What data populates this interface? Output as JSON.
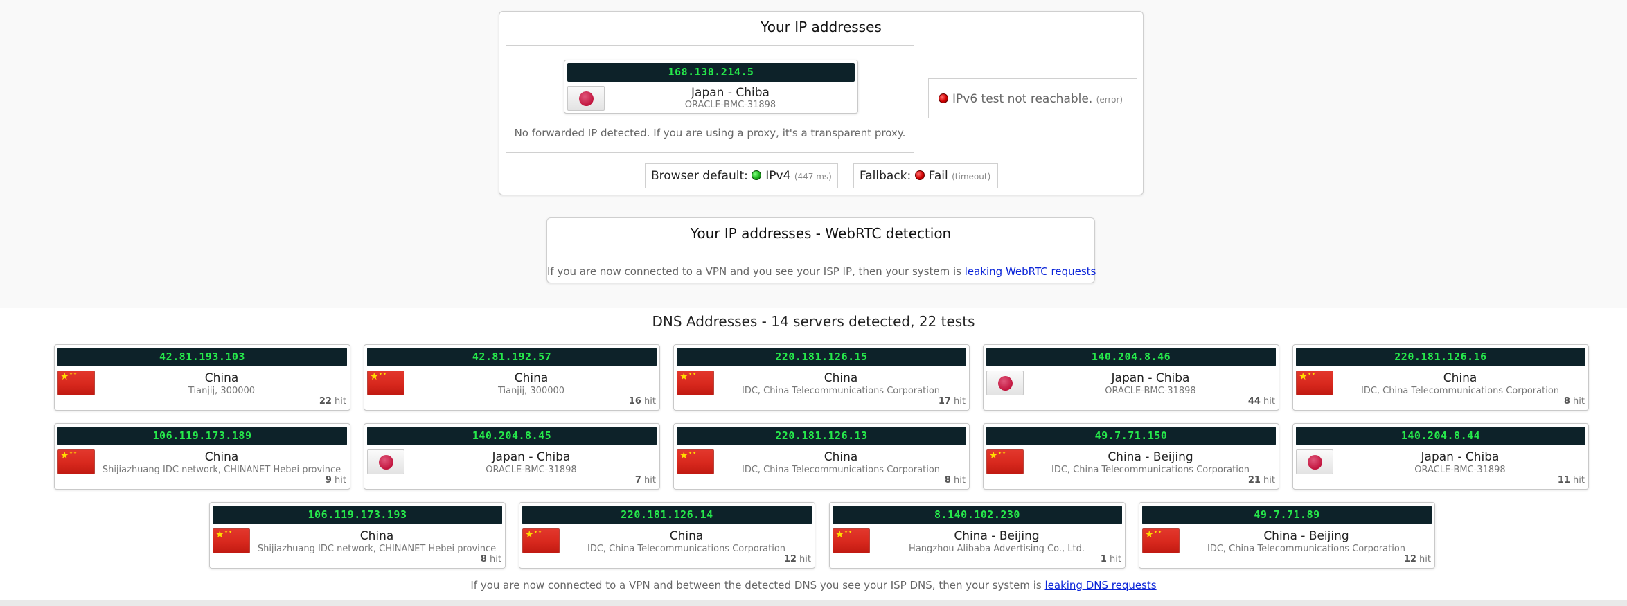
{
  "ip_section": {
    "title": "Your IP addresses",
    "ipv4": {
      "ip": "168.138.214.5",
      "location": "Japan - Chiba",
      "isp": "ORACLE-BMC-31898",
      "flag": "jp-flag-icon"
    },
    "no_forward_note": "No forwarded IP detected. If you are using a proxy, it's a transparent proxy.",
    "ipv6": {
      "status_text": "IPv6 test not reachable.",
      "note": "(error)",
      "status_color": "#d00000"
    },
    "browser_default": {
      "label": "Browser default:",
      "value": "IPv4",
      "note": "(447 ms)",
      "status_color": "#1fb51f"
    },
    "fallback": {
      "label": "Fallback:",
      "value": "Fail",
      "note": "(timeout)",
      "status_color": "#d00000"
    }
  },
  "webrtc_section": {
    "title": "Your IP addresses - WebRTC detection",
    "note_prefix": "If you are now connected to a VPN and you see your ISP IP, then your system is",
    "link_text": "leaking WebRTC requests"
  },
  "dns_section": {
    "title": "DNS Addresses - 14 servers detected, 22 tests",
    "hit_suffix": "hit",
    "servers": [
      {
        "ip": "42.81.193.103",
        "country": "China",
        "isp": "Tianjij, 300000",
        "hits": "22",
        "flag": "cn"
      },
      {
        "ip": "42.81.192.57",
        "country": "China",
        "isp": "Tianjij, 300000",
        "hits": "16",
        "flag": "cn"
      },
      {
        "ip": "220.181.126.15",
        "country": "China",
        "isp": "IDC, China Telecommunications Corporation",
        "hits": "17",
        "flag": "cn"
      },
      {
        "ip": "140.204.8.46",
        "country": "Japan - Chiba",
        "isp": "ORACLE-BMC-31898",
        "hits": "44",
        "flag": "jp"
      },
      {
        "ip": "220.181.126.16",
        "country": "China",
        "isp": "IDC, China Telecommunications Corporation",
        "hits": "8",
        "flag": "cn"
      },
      {
        "ip": "106.119.173.189",
        "country": "China",
        "isp": "Shijiazhuang IDC network, CHINANET Hebei province",
        "hits": "9",
        "flag": "cn"
      },
      {
        "ip": "140.204.8.45",
        "country": "Japan - Chiba",
        "isp": "ORACLE-BMC-31898",
        "hits": "7",
        "flag": "jp"
      },
      {
        "ip": "220.181.126.13",
        "country": "China",
        "isp": "IDC, China Telecommunications Corporation",
        "hits": "8",
        "flag": "cn"
      },
      {
        "ip": "49.7.71.150",
        "country": "China - Beijing",
        "isp": "IDC, China Telecommunications Corporation",
        "hits": "21",
        "flag": "cn"
      },
      {
        "ip": "140.204.8.44",
        "country": "Japan - Chiba",
        "isp": "ORACLE-BMC-31898",
        "hits": "11",
        "flag": "jp"
      },
      {
        "ip": "106.119.173.193",
        "country": "China",
        "isp": "Shijiazhuang IDC network, CHINANET Hebei province",
        "hits": "8",
        "flag": "cn"
      },
      {
        "ip": "220.181.126.14",
        "country": "China",
        "isp": "IDC, China Telecommunications Corporation",
        "hits": "12",
        "flag": "cn"
      },
      {
        "ip": "8.140.102.230",
        "country": "China - Beijing",
        "isp": "Hangzhou Alibaba Advertising Co., Ltd.",
        "hits": "1",
        "flag": "cn"
      },
      {
        "ip": "49.7.71.89",
        "country": "China - Beijing",
        "isp": "IDC, China Telecommunications Corporation",
        "hits": "12",
        "flag": "cn"
      }
    ],
    "note_prefix": "If you are now connected to a VPN and between the detected DNS you see your ISP DNS, then your system is",
    "link_text": "leaking DNS requests"
  },
  "colors": {
    "ip_bar_bg": "#0d2229",
    "ip_bar_text": "#26e84b",
    "link": "#0a24d8"
  }
}
